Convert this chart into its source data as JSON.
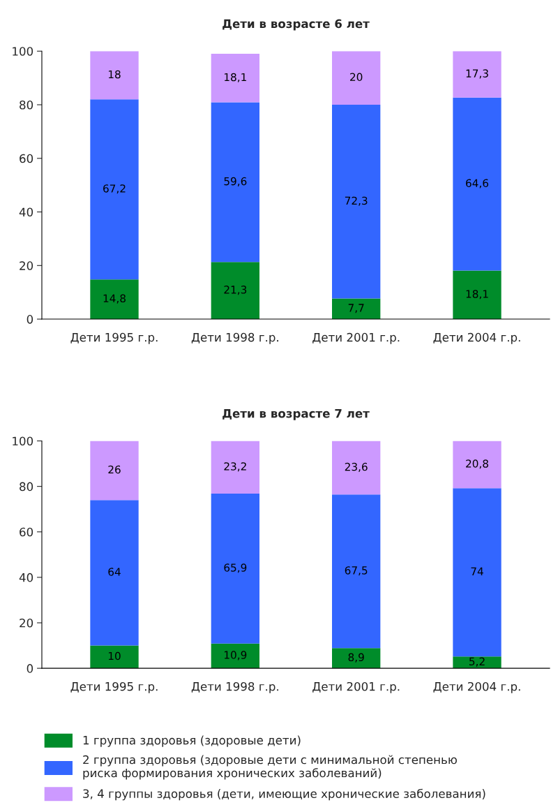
{
  "chart_data": [
    {
      "type": "bar",
      "stacked": true,
      "title": "Дети в возрасте 6 лет",
      "categories": [
        "Дети 1995 г.р.",
        "Дети 1998 г.р.",
        "Дети 2001 г.р.",
        "Дети 2004 г.р."
      ],
      "ylim": [
        0,
        100
      ],
      "yticks": [
        0,
        20,
        40,
        60,
        80,
        100
      ],
      "grid": false,
      "legend": false,
      "series": [
        {
          "color": "#008c2a",
          "values": [
            14.8,
            21.3,
            7.7,
            18.1
          ],
          "value_labels": [
            "14,8",
            "21,3",
            "7,7",
            "18,1"
          ]
        },
        {
          "color": "#3366ff",
          "values": [
            67.2,
            59.6,
            72.3,
            64.6
          ],
          "value_labels": [
            "67,2",
            "59,6",
            "72,3",
            "64,6"
          ]
        },
        {
          "color": "#cc99ff",
          "values": [
            18,
            18.1,
            20,
            17.3
          ],
          "value_labels": [
            "18",
            "18,1",
            "20",
            "17,3"
          ]
        }
      ]
    },
    {
      "type": "bar",
      "stacked": true,
      "title": "Дети в возрасте 7 лет",
      "categories": [
        "Дети 1995 г.р.",
        "Дети 1998 г.р.",
        "Дети 2001 г.р.",
        "Дети 2004 г.р."
      ],
      "ylim": [
        0,
        100
      ],
      "yticks": [
        0,
        20,
        40,
        60,
        80,
        100
      ],
      "grid": false,
      "legend": "bottom",
      "series": [
        {
          "name": "1 группа здоровья (здоровые дети)",
          "color": "#008c2a",
          "values": [
            10,
            10.9,
            8.9,
            5.2
          ],
          "value_labels": [
            "10",
            "10,9",
            "8,9",
            "5,2"
          ]
        },
        {
          "name": "2 группа здоровья (здоровые дети с минимальной степенью риска формирования хронических заболеваний)",
          "color": "#3366ff",
          "values": [
            64,
            65.9,
            67.5,
            74
          ],
          "value_labels": [
            "64",
            "65,9",
            "67,5",
            "74"
          ]
        },
        {
          "name": "3, 4 группы здоровья (дети, имеющие хронические заболевания)",
          "color": "#cc99ff",
          "values": [
            26,
            23.2,
            23.6,
            20.8
          ],
          "value_labels": [
            "26",
            "23,2",
            "23,6",
            "20,8"
          ]
        }
      ]
    }
  ]
}
